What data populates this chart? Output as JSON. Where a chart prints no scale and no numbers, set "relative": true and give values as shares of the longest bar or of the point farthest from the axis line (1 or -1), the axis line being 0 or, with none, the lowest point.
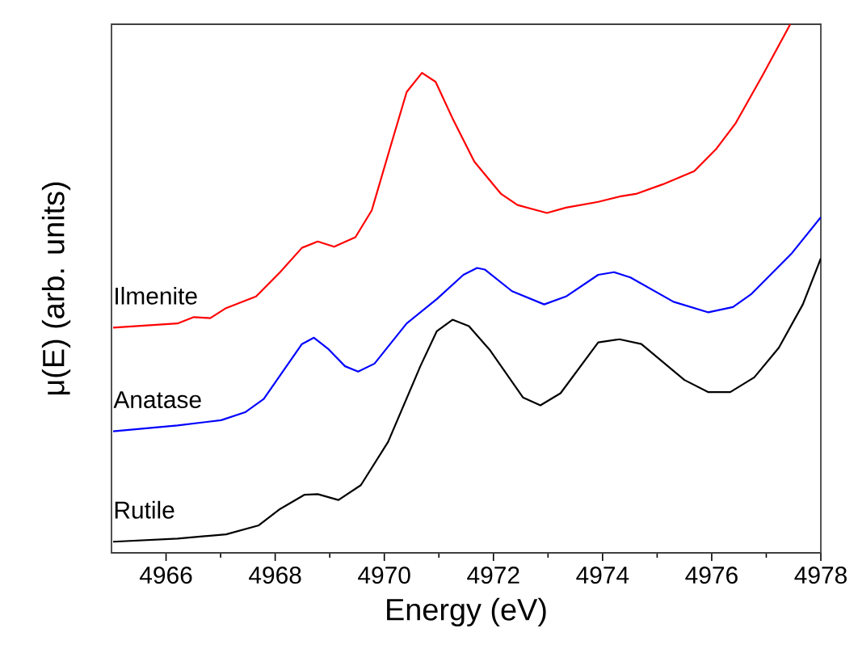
{
  "chart_data": {
    "type": "line",
    "xlabel": "Energy (eV)",
    "ylabel": "μ(E) (arb. units)",
    "relative": true,
    "xlim": [
      4965,
      4978
    ],
    "xticks": [
      4966,
      4968,
      4970,
      4972,
      4974,
      4976,
      4978
    ],
    "grid": false,
    "legend": false,
    "marker": "none",
    "line_style": "solid",
    "series": [
      {
        "name": "Ilmenite",
        "color": "#ff0000",
        "x": [
          4965.03,
          4966.21,
          4966.51,
          4966.81,
          4967.1,
          4967.65,
          4968.09,
          4968.49,
          4968.78,
          4969.08,
          4969.47,
          4969.77,
          4970.12,
          4970.41,
          4970.69,
          4970.94,
          4971.25,
          4971.65,
          4972.14,
          4972.44,
          4972.98,
          4973.33,
          4973.92,
          4974.31,
          4974.61,
          4975.1,
          4975.68,
          4976.09,
          4976.44,
          4976.93,
          4977.44
        ],
        "values": [
          0.426,
          0.434,
          0.446,
          0.444,
          0.463,
          0.485,
          0.531,
          0.577,
          0.589,
          0.579,
          0.597,
          0.648,
          0.771,
          0.872,
          0.908,
          0.891,
          0.822,
          0.74,
          0.679,
          0.658,
          0.643,
          0.653,
          0.664,
          0.674,
          0.679,
          0.697,
          0.722,
          0.765,
          0.813,
          0.903,
          1.0
        ]
      },
      {
        "name": "Anatase",
        "color": "#0000ff",
        "x": [
          4965.03,
          4966.21,
          4967.01,
          4967.45,
          4967.79,
          4968.14,
          4968.49,
          4968.71,
          4968.98,
          4969.28,
          4969.52,
          4969.82,
          4970.41,
          4970.96,
          4971.45,
          4971.7,
          4971.84,
          4972.34,
          4972.93,
          4973.33,
          4973.92,
          4974.21,
          4974.51,
          4975.3,
          4975.94,
          4976.39,
          4976.73,
          4977.47,
          4978.0
        ],
        "values": [
          0.23,
          0.241,
          0.251,
          0.266,
          0.291,
          0.343,
          0.395,
          0.407,
          0.385,
          0.353,
          0.343,
          0.358,
          0.434,
          0.48,
          0.526,
          0.539,
          0.536,
          0.495,
          0.47,
          0.485,
          0.526,
          0.531,
          0.521,
          0.475,
          0.455,
          0.465,
          0.49,
          0.567,
          0.635
        ]
      },
      {
        "name": "Rutile",
        "color": "#000000",
        "x": [
          4965.03,
          4966.21,
          4967.1,
          4967.7,
          4968.09,
          4968.54,
          4968.78,
          4969.16,
          4969.57,
          4970.07,
          4970.66,
          4970.96,
          4971.25,
          4971.55,
          4971.94,
          4972.54,
          4972.86,
          4973.23,
          4973.92,
          4974.31,
          4974.71,
          4975.5,
          4975.94,
          4976.34,
          4976.78,
          4977.23,
          4977.67,
          4978.0
        ],
        "values": [
          0.021,
          0.027,
          0.035,
          0.052,
          0.083,
          0.11,
          0.111,
          0.1,
          0.128,
          0.21,
          0.353,
          0.419,
          0.441,
          0.429,
          0.383,
          0.294,
          0.279,
          0.302,
          0.398,
          0.404,
          0.395,
          0.327,
          0.304,
          0.304,
          0.332,
          0.388,
          0.47,
          0.557
        ]
      }
    ]
  }
}
